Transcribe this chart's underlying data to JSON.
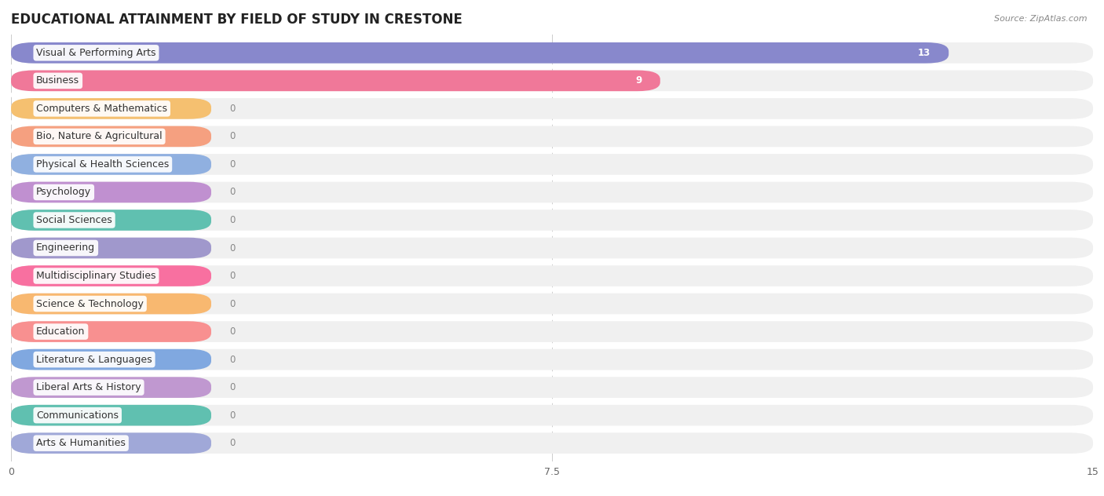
{
  "title": "EDUCATIONAL ATTAINMENT BY FIELD OF STUDY IN CRESTONE",
  "source": "Source: ZipAtlas.com",
  "categories": [
    "Visual & Performing Arts",
    "Business",
    "Computers & Mathematics",
    "Bio, Nature & Agricultural",
    "Physical & Health Sciences",
    "Psychology",
    "Social Sciences",
    "Engineering",
    "Multidisciplinary Studies",
    "Science & Technology",
    "Education",
    "Literature & Languages",
    "Liberal Arts & History",
    "Communications",
    "Arts & Humanities"
  ],
  "values": [
    13,
    9,
    0,
    0,
    0,
    0,
    0,
    0,
    0,
    0,
    0,
    0,
    0,
    0,
    0
  ],
  "bar_colors": [
    "#8888cc",
    "#f07899",
    "#f5c070",
    "#f5a080",
    "#90b0e0",
    "#c090d0",
    "#60c0b0",
    "#a098cc",
    "#f870a0",
    "#f8b870",
    "#f89090",
    "#80a8e0",
    "#c098d0",
    "#60c0b0",
    "#a0a8d8"
  ],
  "xlim": [
    0,
    15
  ],
  "xticks": [
    0,
    7.5,
    15
  ],
  "background_color": "#ffffff",
  "row_bg_color": "#f0f0f0",
  "grid_color": "#cccccc",
  "title_fontsize": 12,
  "label_fontsize": 9,
  "value_fontsize": 8.5
}
